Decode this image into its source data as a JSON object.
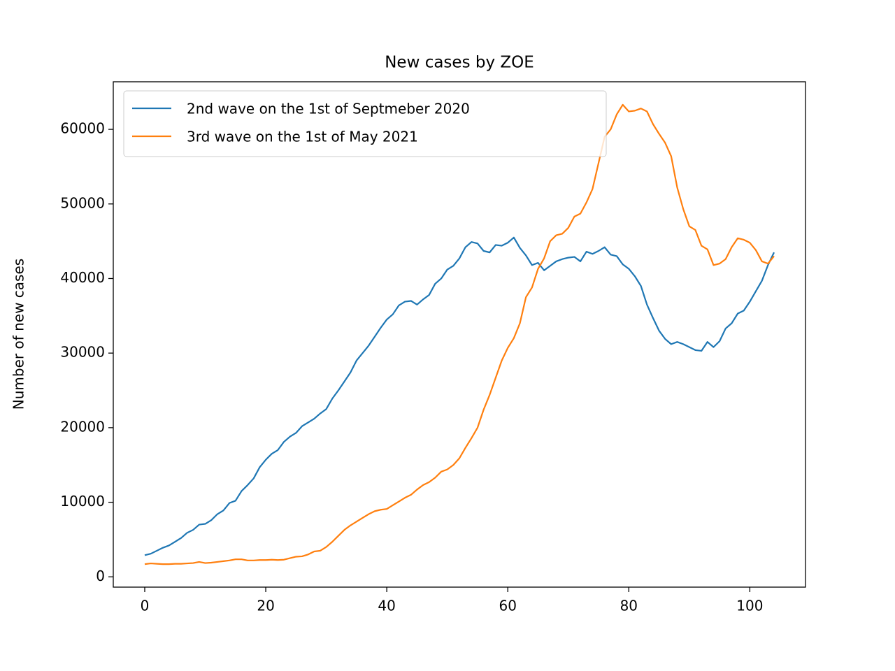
{
  "chart_data": {
    "type": "line",
    "title": "New cases by ZOE",
    "ylabel": "Number of new cases",
    "x": [
      0,
      1,
      2,
      3,
      4,
      5,
      6,
      7,
      8,
      9,
      10,
      11,
      12,
      13,
      14,
      15,
      16,
      17,
      18,
      19,
      20,
      21,
      22,
      23,
      24,
      25,
      26,
      27,
      28,
      29,
      30,
      31,
      32,
      33,
      34,
      35,
      36,
      37,
      38,
      39,
      40,
      41,
      42,
      43,
      44,
      45,
      46,
      47,
      48,
      49,
      50,
      51,
      52,
      53,
      54,
      55,
      56,
      57,
      58,
      59,
      60,
      61,
      62,
      63,
      64,
      65,
      66,
      67,
      68,
      69,
      70,
      71,
      72,
      73,
      74,
      75,
      76,
      77,
      78,
      79,
      80,
      81,
      82,
      83,
      84,
      85,
      86,
      87,
      88,
      89,
      90,
      91,
      92,
      93,
      94,
      95,
      96,
      97,
      98,
      99,
      100,
      101,
      102,
      103,
      104
    ],
    "series": [
      {
        "name": "2nd wave on the 1st of Septmeber 2020",
        "color": "#1f77b4",
        "values": [
          2900,
          3100,
          3500,
          3900,
          4200,
          4700,
          5200,
          5900,
          6300,
          7000,
          7100,
          7600,
          8400,
          8900,
          9900,
          10200,
          11500,
          12300,
          13200,
          14700,
          15700,
          16500,
          17000,
          18100,
          18800,
          19300,
          20200,
          20700,
          21200,
          21900,
          22500,
          23900,
          25000,
          26200,
          27400,
          29000,
          30000,
          31000,
          32200,
          33400,
          34500,
          35200,
          36400,
          36900,
          37000,
          36500,
          37200,
          37800,
          39300,
          40000,
          41200,
          41700,
          42700,
          44200,
          44900,
          44700,
          43700,
          43500,
          44500,
          44400,
          44800,
          45500,
          44100,
          43100,
          41800,
          42100,
          41100,
          41700,
          42300,
          42600,
          42800,
          42900,
          42300,
          43600,
          43300,
          43700,
          44200,
          43200,
          43000,
          41900,
          41300,
          40300,
          39000,
          36500,
          34700,
          33000,
          31900,
          31200,
          31500,
          31200,
          30800,
          30400,
          30300,
          31500,
          30800,
          31600,
          33300,
          34000,
          35300,
          35700,
          36900,
          38300,
          39700,
          41800,
          43500
        ]
      },
      {
        "name": "3rd wave on the 1st of May 2021",
        "color": "#ff7f0e",
        "values": [
          1700,
          1800,
          1750,
          1700,
          1700,
          1750,
          1750,
          1800,
          1850,
          2000,
          1850,
          1900,
          2000,
          2100,
          2200,
          2350,
          2350,
          2200,
          2200,
          2250,
          2250,
          2300,
          2250,
          2300,
          2500,
          2700,
          2750,
          3000,
          3400,
          3500,
          4000,
          4700,
          5500,
          6300,
          6900,
          7400,
          7900,
          8400,
          8800,
          9000,
          9100,
          9600,
          10100,
          10600,
          11000,
          11700,
          12300,
          12700,
          13300,
          14100,
          14400,
          15000,
          15900,
          17300,
          18600,
          20000,
          22400,
          24400,
          26700,
          29000,
          30700,
          32000,
          34000,
          37500,
          38800,
          41300,
          42700,
          45000,
          45800,
          46000,
          46800,
          48300,
          48700,
          50200,
          52000,
          55500,
          59000,
          60000,
          62000,
          63300,
          62400,
          62500,
          62800,
          62400,
          60700,
          59400,
          58200,
          56400,
          52200,
          49300,
          47000,
          46500,
          44400,
          43900,
          41800,
          42000,
          42600,
          44200,
          45400,
          45200,
          44800,
          43800,
          42300,
          42000,
          43000
        ]
      }
    ],
    "xlim": [
      -5.2,
      109.2
    ],
    "xticks": [
      0,
      20,
      40,
      60,
      80,
      100
    ],
    "ylim": [
      -1380,
      66380
    ],
    "yticks": [
      0,
      10000,
      20000,
      30000,
      40000,
      50000,
      60000
    ],
    "grid": false,
    "legend": "upper left"
  }
}
